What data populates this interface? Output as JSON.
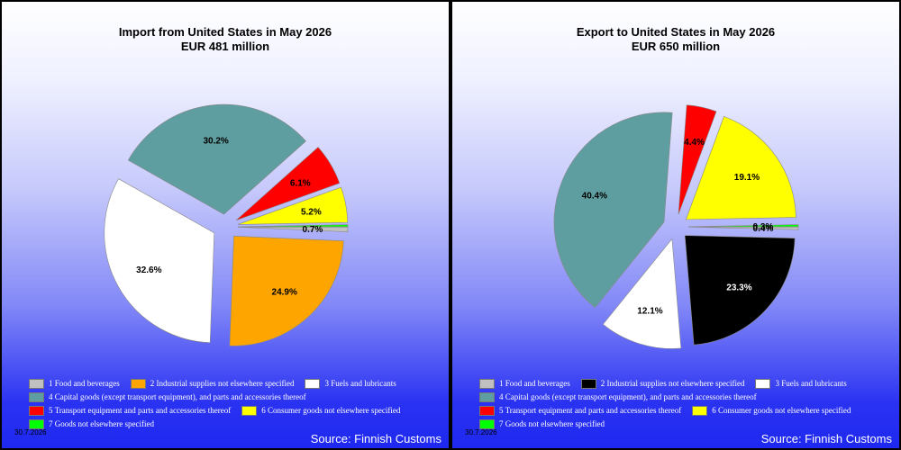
{
  "colors": {
    "food": "#c0c0c0",
    "industrial_import": "#ffa500",
    "industrial_export": "#000000",
    "fuels": "#ffffff",
    "capital": "#5f9ea0",
    "transport": "#ff0000",
    "consumer": "#ffff00",
    "other": "#00ff00"
  },
  "legend_labels": [
    "1 Food and beverages",
    "2 Industrial supplies not elsewhere specified",
    "3 Fuels and lubricants",
    "4 Capital goods (except transport equipment), and parts and accessories thereof",
    "5  Transport equipment and parts and accessories thereof",
    "6 Consumer goods not elsewhere specified",
    "7 Goods not elsewhere specified"
  ],
  "date": "30.7.2026",
  "source": "Source: Finnish Customs",
  "chart_data": [
    {
      "type": "pie",
      "title": "Import from United States in May 2026",
      "subtitle": "EUR   481 million",
      "slices": [
        {
          "category": "1 Food and beverages",
          "value": 0.7,
          "label": "0.7%",
          "color": "#c0c0c0"
        },
        {
          "category": "2 Industrial supplies not elsewhere specified",
          "value": 24.9,
          "label": "24.9%",
          "color": "#ffa500"
        },
        {
          "category": "3 Fuels and lubricants",
          "value": 32.6,
          "label": "32.6%",
          "color": "#ffffff"
        },
        {
          "category": "4 Capital goods (except transport equipment), and parts and accessories thereof",
          "value": 30.2,
          "label": "30.2%",
          "color": "#5f9ea0"
        },
        {
          "category": "5 Transport equipment and parts and accessories thereof",
          "value": 6.1,
          "label": "6.1%",
          "color": "#ff0000"
        },
        {
          "category": "6 Consumer goods not elsewhere specified",
          "value": 5.2,
          "label": "5.2%",
          "color": "#ffff00"
        },
        {
          "category": "7 Goods not elsewhere specified",
          "value": 0.3,
          "label": "",
          "color": "#00ff00"
        }
      ]
    },
    {
      "type": "pie",
      "title": "Export to United States in May 2026",
      "subtitle": "EUR   650 million",
      "slices": [
        {
          "category": "1 Food and beverages",
          "value": 0.4,
          "label": "0.4%",
          "color": "#c0c0c0"
        },
        {
          "category": "2 Industrial supplies not elsewhere specified",
          "value": 23.3,
          "label": "23.3%",
          "color": "#000000"
        },
        {
          "category": "3 Fuels and lubricants",
          "value": 12.1,
          "label": "12.1%",
          "color": "#ffffff"
        },
        {
          "category": "4 Capital goods (except transport equipment), and parts and accessories thereof",
          "value": 40.4,
          "label": "40.4%",
          "color": "#5f9ea0"
        },
        {
          "category": "5 Transport equipment and parts and accessories thereof",
          "value": 4.4,
          "label": "4.4%",
          "color": "#ff0000"
        },
        {
          "category": "6 Consumer goods not elsewhere specified",
          "value": 19.1,
          "label": "19.1%",
          "color": "#ffff00"
        },
        {
          "category": "7 Goods not elsewhere specified",
          "value": 0.3,
          "label": "0.3%",
          "color": "#00ff00"
        }
      ]
    }
  ]
}
